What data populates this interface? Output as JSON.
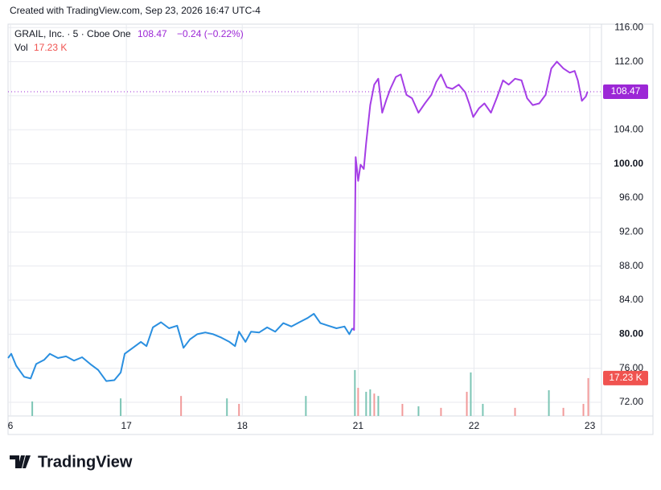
{
  "header": {
    "created": "Created with TradingView.com, Sep 23, 2026 16:47 UTC-4",
    "symbol": "GRAIL, Inc. · 5 · Cboe One",
    "change": "−0.24 (−0.22%)",
    "vol_label": "Vol"
  },
  "chart_data": {
    "type": "line",
    "xlim": [
      -0.021,
      5.1
    ],
    "xticks": [
      {
        "value": 0,
        "label": "6"
      },
      {
        "value": 1,
        "label": "17"
      },
      {
        "value": 2,
        "label": "18"
      },
      {
        "value": 3,
        "label": "21"
      },
      {
        "value": 4,
        "label": "22"
      },
      {
        "value": 5,
        "label": "23"
      }
    ],
    "ylim": [
      70.4,
      116.4
    ],
    "yticks": [
      {
        "value": 72,
        "label": "72.00"
      },
      {
        "value": 76,
        "label": "76.00"
      },
      {
        "value": 80,
        "label": "80.00"
      },
      {
        "value": 84,
        "label": "84.00"
      },
      {
        "value": 88,
        "label": "88.00"
      },
      {
        "value": 92,
        "label": "92.00"
      },
      {
        "value": 96,
        "label": "96.00"
      },
      {
        "value": 100,
        "label": "100.00"
      },
      {
        "value": 104,
        "label": "104.00"
      },
      {
        "value": 108,
        "label": "108.00"
      },
      {
        "value": 112,
        "label": "112.00"
      },
      {
        "value": 116,
        "label": "116.00"
      }
    ],
    "grid": true,
    "series": [
      {
        "color": "#2a8fe0",
        "x": [
          -0.021,
          0.007,
          0.049,
          0.118,
          0.174,
          0.222,
          0.292,
          0.34,
          0.41,
          0.479,
          0.549,
          0.618,
          0.688,
          0.757,
          0.826,
          0.896,
          0.951,
          0.986,
          1.056,
          1.125,
          1.174,
          1.229,
          1.299,
          1.368,
          1.438,
          1.493,
          1.549,
          1.611,
          1.681,
          1.75,
          1.819,
          1.889,
          1.938,
          1.972,
          2.028,
          2.076,
          2.146,
          2.215,
          2.285,
          2.354,
          2.424,
          2.493,
          2.563,
          2.618,
          2.674,
          2.743,
          2.813,
          2.882,
          2.924,
          2.951
        ],
        "values": [
          77.2,
          77.7,
          76.3,
          75.0,
          74.8,
          76.5,
          77.0,
          77.7,
          77.2,
          77.4,
          76.9,
          77.3,
          76.5,
          75.8,
          74.5,
          74.6,
          75.5,
          77.7,
          78.4,
          79.1,
          78.6,
          80.8,
          81.4,
          80.7,
          81.0,
          78.4,
          79.4,
          80.0,
          80.2,
          80.0,
          79.6,
          79.1,
          78.6,
          80.3,
          79.1,
          80.3,
          80.2,
          80.8,
          80.3,
          81.3,
          80.9,
          81.4,
          81.9,
          82.4,
          81.3,
          81.0,
          80.7,
          80.9,
          80.0,
          80.7
        ]
      },
      {
        "color": "#a53ee6",
        "x": [
          2.951,
          2.965,
          2.972,
          2.979,
          3.0,
          3.021,
          3.049,
          3.069,
          3.104,
          3.139,
          3.174,
          3.208,
          3.243,
          3.278,
          3.326,
          3.368,
          3.417,
          3.465,
          3.521,
          3.576,
          3.632,
          3.674,
          3.715,
          3.764,
          3.813,
          3.868,
          3.924,
          3.958,
          3.993,
          4.042,
          4.09,
          4.146,
          4.201,
          4.25,
          4.299,
          4.354,
          4.41,
          4.458,
          4.507,
          4.563,
          4.618,
          4.667,
          4.715,
          4.771,
          4.826,
          4.868,
          4.896,
          4.931,
          4.965,
          4.979
        ],
        "values": [
          80.7,
          80.5,
          90.9,
          100.8,
          98.0,
          99.9,
          99.4,
          102.4,
          106.9,
          109.3,
          110.0,
          106.0,
          107.5,
          108.8,
          110.2,
          110.5,
          108.1,
          107.7,
          106.0,
          107.1,
          108.1,
          109.6,
          110.5,
          109.0,
          108.8,
          109.3,
          108.4,
          107.1,
          105.5,
          106.5,
          107.1,
          106.0,
          107.9,
          109.8,
          109.3,
          110.0,
          109.8,
          107.7,
          106.9,
          107.1,
          108.1,
          111.2,
          112.0,
          111.2,
          110.7,
          110.9,
          109.8,
          107.4,
          107.9,
          108.47
        ]
      }
    ],
    "last_price": {
      "value": 108.47,
      "label": "108.47",
      "color": "#9c27d6"
    },
    "volume": {
      "ylim": [
        0,
        60000
      ],
      "x": [
        0.188,
        0.951,
        1.472,
        1.868,
        1.972,
        2.549,
        2.972,
        3.0,
        3.069,
        3.104,
        3.139,
        3.174,
        3.382,
        3.521,
        3.715,
        3.938,
        3.972,
        4.076,
        4.354,
        4.646,
        4.771,
        4.944,
        4.986
      ],
      "values": [
        6600,
        8000,
        9100,
        8000,
        5500,
        9100,
        20900,
        12800,
        11000,
        12100,
        10200,
        9100,
        5500,
        4400,
        3700,
        11000,
        19800,
        5500,
        3700,
        11700,
        3700,
        5500,
        17230
      ],
      "colors": [
        "#7cc5b5",
        "#7cc5b5",
        "#f19a9a",
        "#7cc5b5",
        "#f19a9a",
        "#7cc5b5",
        "#7cc5b5",
        "#f19a9a",
        "#7cc5b5",
        "#7cc5b5",
        "#f19a9a",
        "#7cc5b5",
        "#f19a9a",
        "#7cc5b5",
        "#f19a9a",
        "#f19a9a",
        "#7cc5b5",
        "#7cc5b5",
        "#f19a9a",
        "#7cc5b5",
        "#f19a9a",
        "#f19a9a",
        "#f19a9a"
      ],
      "value_labels": {
        "22": "17.23 K"
      },
      "label_color": "#f05350"
    }
  },
  "footer": {
    "logo": "TradingView"
  }
}
